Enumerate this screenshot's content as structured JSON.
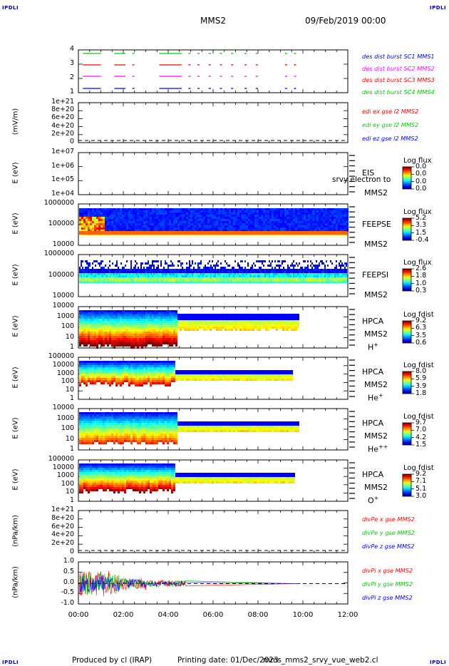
{
  "header": {
    "corner_tl": "IPDLI",
    "corner_tr": "IPDLI",
    "corner_bl": "IPDLI",
    "corner_br": "IPDLI",
    "spacecraft": "MMS2",
    "date": "09/Feb/2019 00:00"
  },
  "footer": {
    "produced": "Produced by cl (IRAP)",
    "printing": "Printing date: 01/Dec/2023",
    "file": "mms_mms2_srvy_vue_web2.cl"
  },
  "colors": {
    "blue": "#0000ff",
    "red": "#ff0000",
    "magenta": "#ff00ff",
    "green": "#00cc00"
  },
  "chart_data": {
    "type": "heatmap",
    "x_axis": {
      "range": [
        "00:00",
        "12:00"
      ],
      "ticks": [
        "00:00",
        "02:00",
        "04:00",
        "06:00",
        "08:00",
        "10:00",
        "12:00"
      ]
    },
    "panels": [
      {
        "id": "burst",
        "ylabel": "",
        "yticks": [
          "4",
          "3",
          "2",
          "1"
        ],
        "legend": [
          {
            "text": "des dist burst SC1 MMS1",
            "color": "#0000ff"
          },
          {
            "text": "des dist burst SC2 MMS2",
            "color": "#ff00ff"
          },
          {
            "text": "des dist burst SC3 MMS3",
            "color": "#ff0000"
          },
          {
            "text": "des dist burst SC4 MMS4",
            "color": "#00cc00"
          }
        ]
      },
      {
        "id": "edi",
        "ylabel": "(mV/m)",
        "yticks": [
          "1e+21",
          "8e+20",
          "6e+20",
          "4e+20",
          "2e+20",
          "0"
        ],
        "legend": [
          {
            "text": "edi ex gse l2 MMS2",
            "color": "#ff0000"
          },
          {
            "text": "edi ey gse l2 MMS2",
            "color": "#00cc00"
          },
          {
            "text": "edi ez gse l2 MMS2",
            "color": "#0000ff"
          }
        ]
      },
      {
        "id": "eis",
        "ylabel": "E (eV)",
        "yticks": [
          "1e+07",
          "1e+06",
          "1e+05",
          "1e+04"
        ],
        "side": [
          "EIS",
          "MMS2"
        ],
        "overlay": "srvy electron to",
        "cbar_title": "Log flux",
        "cbar_values": [
          "0.0",
          "0.0",
          "0.0",
          "0.0"
        ]
      },
      {
        "id": "feepse",
        "ylabel": "E (eV)",
        "yticks": [
          "1000000",
          "100000",
          "10000"
        ],
        "side": [
          "FEEPSE",
          "MMS2"
        ],
        "cbar_title": "Log flux",
        "cbar_values": [
          "5.2",
          "3.3",
          "1.5",
          "-0.4"
        ]
      },
      {
        "id": "feepsi",
        "ylabel": "E (eV)",
        "yticks": [
          "1000000",
          "100000",
          "10000"
        ],
        "side": [
          "FEEPSI",
          "MMS2"
        ],
        "cbar_title": "Log flux",
        "cbar_values": [
          "2.6",
          "1.8",
          "1.0",
          "0.3"
        ]
      },
      {
        "id": "hpca_h",
        "ylabel": "E (eV)",
        "yticks": [
          "10000",
          "1000",
          "100",
          "10",
          "1"
        ],
        "side": [
          "HPCA",
          "MMS2"
        ],
        "species": "H",
        "charge": "+",
        "cbar_title": "Log fdist",
        "cbar_values": [
          "9.2",
          "6.3",
          "3.5",
          "0.6"
        ]
      },
      {
        "id": "hpca_he",
        "ylabel": "E (eV)",
        "yticks": [
          "100000",
          "10000",
          "1000",
          "100",
          "10",
          "1"
        ],
        "side": [
          "HPCA",
          "MMS2"
        ],
        "species": "He",
        "charge": "+",
        "cbar_title": "Log fdist",
        "cbar_values": [
          "8.0",
          "5.9",
          "3.9",
          "1.8"
        ]
      },
      {
        "id": "hpca_he2",
        "ylabel": "E (eV)",
        "yticks": [
          "10000",
          "1000",
          "100",
          "10",
          "1"
        ],
        "side": [
          "HPCA",
          "MMS2"
        ],
        "species": "He",
        "charge": "++",
        "cbar_title": "Log fdist",
        "cbar_values": [
          "9.7",
          "7.0",
          "4.2",
          "1.5"
        ]
      },
      {
        "id": "hpca_o",
        "ylabel": "E (eV)",
        "yticks": [
          "100000",
          "10000",
          "1000",
          "100",
          "10",
          "1"
        ],
        "side": [
          "HPCA",
          "MMS2"
        ],
        "species": "O",
        "charge": "+",
        "cbar_title": "Log fdist",
        "cbar_values": [
          "9.2",
          "7.1",
          "5.1",
          "3.0"
        ]
      },
      {
        "id": "divpe",
        "ylabel": "(nPa/km)",
        "yticks": [
          "1e+21",
          "8e+20",
          "6e+20",
          "4e+20",
          "2e+20",
          "0"
        ],
        "legend": [
          {
            "text": "divPe x gse MMS2",
            "color": "#ff0000"
          },
          {
            "text": "divPe y gse MMS2",
            "color": "#00cc00"
          },
          {
            "text": "divPe z gse MMS2",
            "color": "#0000ff"
          }
        ]
      },
      {
        "id": "divpi",
        "ylabel": "(nPa/km)",
        "yticks": [
          "1.0",
          "0.5",
          "0.0",
          "-0.5",
          "-1.0"
        ],
        "legend": [
          {
            "text": "divPi x gse MMS2",
            "color": "#ff0000"
          },
          {
            "text": "divPi y gse MMS2",
            "color": "#00cc00"
          },
          {
            "text": "divPi z gse MMS2",
            "color": "#0000ff"
          }
        ]
      }
    ]
  }
}
